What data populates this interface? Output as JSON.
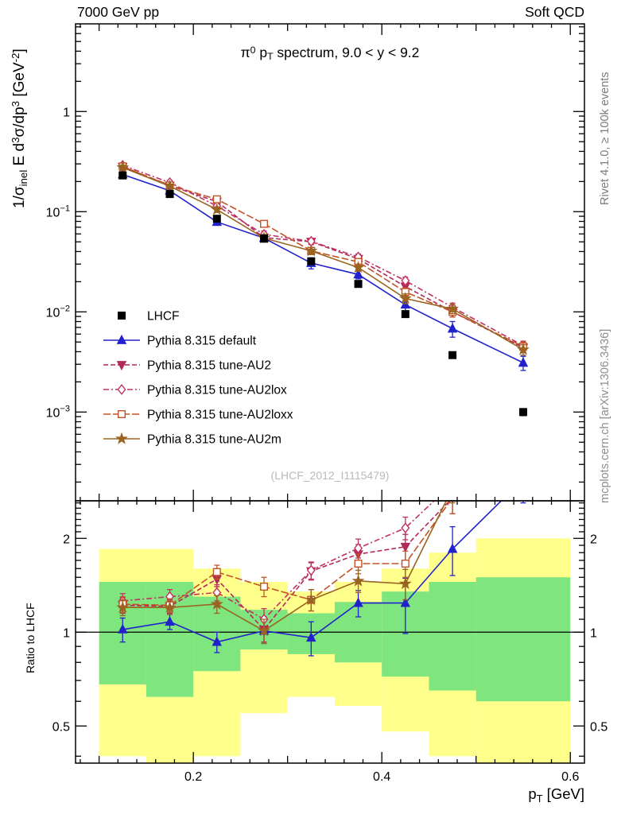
{
  "header": {
    "left": "7000 GeV pp",
    "right": "Soft QCD"
  },
  "side_notes": {
    "top_right": "Rivet 4.1.0, ≥ 100k events",
    "bottom_right": "mcplots.cern.ch [arXiv:1306.3436]"
  },
  "watermark": "(LHCF_2012_I1115479)",
  "chart_data": {
    "type": "line",
    "title": "π^{0} p_{T} spectrum, 9.0 < y < 9.2",
    "xlabel": "p_{T} [GeV]",
    "ylabel_top": "1/σ_{inel} E d^{3}σ/dp^{3} [GeV^{-2}]",
    "ylabel_bottom": "Ratio to LHCF",
    "x_range": [
      0.075,
      0.615
    ],
    "x_major_ticks": [
      0.2,
      0.4,
      0.6
    ],
    "top_panel": {
      "yscale": "log",
      "y_range": [
        0.00013,
        7.5
      ],
      "y_major_ticks": [
        0.001,
        0.01,
        0.1,
        1
      ]
    },
    "bottom_panel": {
      "yscale": "log",
      "y_range": [
        0.38,
        2.64
      ],
      "y_major_ticks": [
        0.5,
        1,
        2
      ],
      "ref_line": 1
    },
    "x": [
      0.125,
      0.175,
      0.225,
      0.275,
      0.325,
      0.375,
      0.425,
      0.475,
      0.55
    ],
    "series": [
      {
        "name": "LHCF",
        "role": "data",
        "color": "#000000",
        "marker": "square",
        "values": [
          0.23,
          0.15,
          0.085,
          0.054,
          0.032,
          0.019,
          0.0095,
          0.0037,
          0.001
        ],
        "frac_err": [
          0.03,
          0.03,
          0.03,
          0.03,
          0.04,
          0.04,
          0.05,
          0.06,
          0.08
        ]
      },
      {
        "name": "Pythia 8.315 default",
        "color": "#2222cc",
        "line": "solid",
        "dash": "",
        "marker": "triangle-up",
        "values": [
          0.235,
          0.162,
          0.079,
          0.0545,
          0.0307,
          0.0236,
          0.0118,
          0.0068,
          0.0031
        ],
        "ratio": [
          1.02,
          1.08,
          0.93,
          1.01,
          0.96,
          1.24,
          1.24,
          1.85,
          3.1
        ],
        "ratio_err": [
          0.09,
          0.06,
          0.07,
          0.09,
          0.12,
          0.12,
          0.25,
          0.33,
          0.5
        ]
      },
      {
        "name": "Pythia 8.315 tune-AU2",
        "color": "#b02a5b",
        "line": "dashed",
        "dash": "6 3",
        "marker": "triangle-down",
        "values": [
          0.281,
          0.182,
          0.126,
          0.055,
          0.0502,
          0.0338,
          0.0179,
          0.01,
          0.0044
        ],
        "ratio": [
          1.22,
          1.21,
          1.48,
          1.02,
          1.57,
          1.78,
          1.88,
          2.7,
          4.4
        ],
        "ratio_err": [
          0.07,
          0.06,
          0.08,
          0.09,
          0.1,
          0.13,
          0.18,
          0.3,
          0.5
        ]
      },
      {
        "name": "Pythia 8.315 tune-AU2lox",
        "color": "#c2315f",
        "line": "dash-dot",
        "dash": "7 3 2 3",
        "marker": "diamond-open",
        "values": [
          0.29,
          0.195,
          0.114,
          0.0594,
          0.0506,
          0.0353,
          0.0205,
          0.0111,
          0.0046
        ],
        "ratio": [
          1.26,
          1.3,
          1.34,
          1.1,
          1.58,
          1.86,
          2.16,
          3.0,
          4.6
        ],
        "ratio_err": [
          0.07,
          0.07,
          0.08,
          0.09,
          0.1,
          0.13,
          0.18,
          0.3,
          0.5
        ]
      },
      {
        "name": "Pythia 8.315 tune-AU2loxx",
        "color": "#c25427",
        "line": "dashed",
        "dash": "9 3",
        "marker": "square-open",
        "values": [
          0.283,
          0.183,
          0.133,
          0.0756,
          0.0406,
          0.0315,
          0.0158,
          0.01,
          0.0045
        ],
        "ratio": [
          1.23,
          1.22,
          1.56,
          1.4,
          1.27,
          1.66,
          1.66,
          2.7,
          4.5
        ],
        "ratio_err": [
          0.07,
          0.06,
          0.08,
          0.1,
          0.1,
          0.12,
          0.16,
          0.3,
          0.5
        ]
      },
      {
        "name": "Pythia 8.315 tune-AU2m",
        "color": "#9a6420",
        "line": "solid",
        "dash": "",
        "marker": "star",
        "values": [
          0.276,
          0.18,
          0.105,
          0.0545,
          0.0406,
          0.0277,
          0.0136,
          0.0107,
          0.0042
        ],
        "ratio": [
          1.2,
          1.2,
          1.23,
          1.01,
          1.27,
          1.46,
          1.43,
          2.9,
          4.2
        ],
        "ratio_err": [
          0.07,
          0.06,
          0.08,
          0.09,
          0.1,
          0.12,
          0.16,
          0.3,
          0.5
        ]
      }
    ],
    "bands": {
      "edges": [
        0.1,
        0.15,
        0.2,
        0.25,
        0.3,
        0.35,
        0.4,
        0.45,
        0.5,
        0.6
      ],
      "yellow": {
        "color": "#ffff8c",
        "lo": [
          0.4,
          0.33,
          0.4,
          0.55,
          0.62,
          0.58,
          0.48,
          0.4,
          0.35
        ],
        "hi": [
          1.85,
          1.85,
          1.6,
          1.45,
          1.35,
          1.45,
          1.6,
          1.8,
          2.0
        ]
      },
      "green": {
        "color": "#7fe57f",
        "lo": [
          0.68,
          0.62,
          0.75,
          0.88,
          0.85,
          0.8,
          0.72,
          0.65,
          0.6
        ],
        "hi": [
          1.45,
          1.45,
          1.3,
          1.18,
          1.15,
          1.25,
          1.35,
          1.45,
          1.5
        ]
      }
    }
  }
}
